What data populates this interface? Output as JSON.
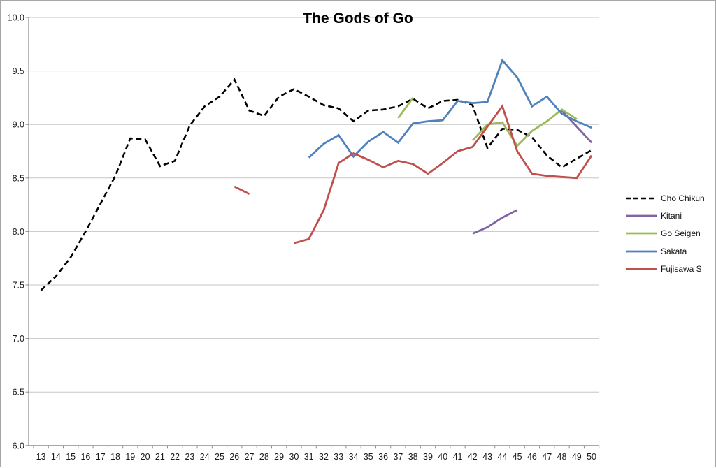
{
  "title": "The Gods of Go",
  "chart_data": {
    "type": "line",
    "title": "The Gods of Go",
    "xlabel": "",
    "ylabel": "",
    "ylim": [
      6.0,
      10.0
    ],
    "grid": "horizontal",
    "legend_position": "right",
    "x_ticks": [
      13,
      14,
      15,
      16,
      17,
      18,
      19,
      20,
      21,
      22,
      23,
      24,
      25,
      26,
      27,
      28,
      29,
      30,
      31,
      32,
      33,
      34,
      35,
      36,
      37,
      38,
      39,
      40,
      41,
      42,
      43,
      44,
      45,
      46,
      47,
      48,
      49,
      50
    ],
    "y_ticks": {
      "labels": [
        "10.0",
        "9.5",
        "9.0",
        "8.5",
        "8.0",
        "7.5",
        "7.0",
        "6.5",
        "6.0"
      ],
      "values": [
        10.0,
        9.5,
        9.0,
        8.5,
        8.0,
        7.5,
        7.0,
        6.5,
        6.0
      ]
    },
    "series": [
      {
        "name": "Cho Chikun",
        "color": "#000000",
        "dash": "8 4.5",
        "width": 2.6,
        "segments": [
          [
            [
              13,
              7.45
            ],
            [
              14,
              7.58
            ],
            [
              15,
              7.76
            ],
            [
              16,
              8.0
            ],
            [
              17,
              8.26
            ],
            [
              18,
              8.52
            ],
            [
              19,
              8.87
            ],
            [
              20,
              8.86
            ],
            [
              21,
              8.61
            ],
            [
              22,
              8.66
            ],
            [
              23,
              8.99
            ],
            [
              24,
              9.17
            ],
            [
              25,
              9.26
            ],
            [
              26,
              9.42
            ],
            [
              27,
              9.13
            ],
            [
              28,
              9.08
            ],
            [
              29,
              9.26
            ],
            [
              30,
              9.33
            ],
            [
              31,
              9.26
            ],
            [
              32,
              9.18
            ],
            [
              33,
              9.15
            ],
            [
              34,
              9.03
            ],
            [
              35,
              9.13
            ],
            [
              36,
              9.14
            ],
            [
              37,
              9.17
            ],
            [
              38,
              9.24
            ],
            [
              39,
              9.15
            ],
            [
              40,
              9.22
            ],
            [
              41,
              9.23
            ],
            [
              42,
              9.18
            ],
            [
              43,
              8.78
            ],
            [
              44,
              8.96
            ],
            [
              45,
              8.95
            ],
            [
              46,
              8.88
            ],
            [
              47,
              8.71
            ],
            [
              48,
              8.6
            ],
            [
              49,
              8.68
            ],
            [
              50,
              8.76
            ]
          ]
        ]
      },
      {
        "name": "Kitani",
        "color": "#8064A2",
        "dash": null,
        "width": 2.8,
        "segments": [
          [
            [
              42,
              7.98
            ],
            [
              43,
              8.04
            ],
            [
              44,
              8.13
            ],
            [
              45,
              8.2
            ]
          ],
          [
            [
              48,
              9.13
            ],
            [
              49,
              8.98
            ],
            [
              50,
              8.83
            ]
          ]
        ]
      },
      {
        "name": "Go Seigen",
        "color": "#9BBB59",
        "dash": null,
        "width": 2.8,
        "segments": [
          [
            [
              37,
              9.06
            ],
            [
              38,
              9.25
            ]
          ],
          [
            [
              42,
              8.85
            ],
            [
              43,
              9.0
            ],
            [
              44,
              9.02
            ],
            [
              45,
              8.8
            ],
            [
              46,
              8.94
            ],
            [
              47,
              9.03
            ],
            [
              48,
              9.14
            ],
            [
              49,
              9.05
            ]
          ]
        ]
      },
      {
        "name": "Sakata",
        "color": "#4F81BD",
        "dash": null,
        "width": 2.8,
        "segments": [
          [
            [
              31,
              8.69
            ],
            [
              32,
              8.82
            ],
            [
              33,
              8.9
            ],
            [
              34,
              8.7
            ],
            [
              35,
              8.84
            ],
            [
              36,
              8.93
            ],
            [
              37,
              8.83
            ],
            [
              38,
              9.01
            ],
            [
              39,
              9.03
            ],
            [
              40,
              9.04
            ],
            [
              41,
              9.22
            ],
            [
              42,
              9.2
            ],
            [
              43,
              9.21
            ],
            [
              44,
              9.6
            ],
            [
              45,
              9.44
            ],
            [
              46,
              9.17
            ],
            [
              47,
              9.26
            ],
            [
              48,
              9.1
            ],
            [
              49,
              9.03
            ],
            [
              50,
              8.97
            ]
          ]
        ]
      },
      {
        "name": "Fujisawa S",
        "color": "#C0504D",
        "dash": null,
        "width": 2.8,
        "segments": [
          [
            [
              26,
              8.42
            ],
            [
              27,
              8.35
            ]
          ],
          [
            [
              30,
              7.89
            ],
            [
              31,
              7.93
            ],
            [
              32,
              8.2
            ],
            [
              33,
              8.64
            ],
            [
              34,
              8.73
            ],
            [
              35,
              8.67
            ],
            [
              36,
              8.6
            ],
            [
              37,
              8.66
            ],
            [
              38,
              8.63
            ],
            [
              39,
              8.54
            ],
            [
              40,
              8.64
            ],
            [
              41,
              8.75
            ],
            [
              42,
              8.79
            ],
            [
              43,
              8.98
            ],
            [
              44,
              9.17
            ],
            [
              45,
              8.75
            ],
            [
              46,
              8.54
            ],
            [
              47,
              8.52
            ],
            [
              48,
              8.51
            ],
            [
              49,
              8.5
            ],
            [
              50,
              8.71
            ]
          ]
        ]
      }
    ]
  }
}
